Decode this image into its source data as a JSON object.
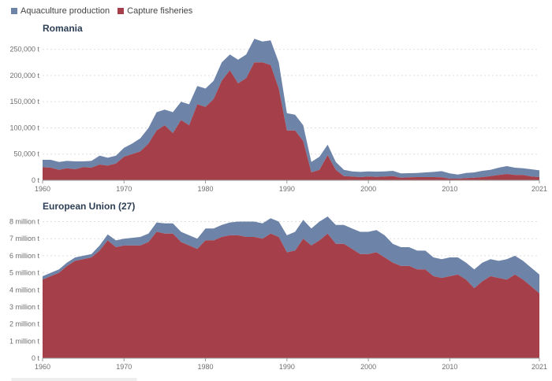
{
  "legend": {
    "items": [
      {
        "label": "Aquaculture production",
        "color": "#6d83a8"
      },
      {
        "label": "Capture fisheries",
        "color": "#a5404a"
      }
    ]
  },
  "chart_data": [
    {
      "type": "area",
      "stacked": true,
      "title": "Romania",
      "x": [
        1960,
        1961,
        1962,
        1963,
        1964,
        1965,
        1966,
        1967,
        1968,
        1969,
        1970,
        1971,
        1972,
        1973,
        1974,
        1975,
        1976,
        1977,
        1978,
        1979,
        1980,
        1981,
        1982,
        1983,
        1984,
        1985,
        1986,
        1987,
        1988,
        1989,
        1990,
        1991,
        1992,
        1993,
        1994,
        1995,
        1996,
        1997,
        1998,
        1999,
        2000,
        2001,
        2002,
        2003,
        2004,
        2005,
        2006,
        2007,
        2008,
        2009,
        2010,
        2011,
        2012,
        2013,
        2014,
        2015,
        2016,
        2017,
        2018,
        2019,
        2020,
        2021
      ],
      "series": [
        {
          "name": "Capture fisheries",
          "color": "#a5404a",
          "values": [
            25000,
            24000,
            20000,
            23000,
            21000,
            25000,
            24000,
            30000,
            28000,
            32000,
            45000,
            50000,
            55000,
            70000,
            95000,
            105000,
            90000,
            115000,
            105000,
            145000,
            140000,
            155000,
            190000,
            210000,
            185000,
            195000,
            225000,
            225000,
            220000,
            175000,
            95000,
            95000,
            75000,
            15000,
            20000,
            48000,
            20000,
            8000,
            7000,
            6000,
            7000,
            6500,
            7000,
            8000,
            5000,
            5500,
            6000,
            6000,
            6000,
            5500,
            3000,
            3000,
            4000,
            5000,
            6000,
            8000,
            10000,
            12000,
            10000,
            10000,
            7000,
            6000
          ]
        },
        {
          "name": "Aquaculture production",
          "color": "#6d83a8",
          "values": [
            14000,
            15000,
            15000,
            14000,
            15000,
            11000,
            13000,
            17000,
            15000,
            15000,
            17000,
            20000,
            25000,
            30000,
            35000,
            30000,
            40000,
            35000,
            40000,
            35000,
            35000,
            35000,
            35000,
            30000,
            45000,
            45000,
            45000,
            40000,
            47000,
            50000,
            33000,
            30000,
            30000,
            20000,
            25000,
            20000,
            15000,
            12000,
            10000,
            10000,
            10000,
            10000,
            10000,
            10000,
            8000,
            8000,
            8000,
            9000,
            10000,
            12000,
            10000,
            8000,
            10000,
            10000,
            12000,
            12000,
            14000,
            15000,
            14000,
            13000,
            14000,
            13000
          ]
        }
      ],
      "ylim": [
        0,
        275000
      ],
      "yticks": [
        0,
        50000,
        100000,
        150000,
        200000,
        250000
      ],
      "ytick_labels": [
        "0 t",
        "50,000 t",
        "100,000 t",
        "150,000 t",
        "200,000 t",
        "250,000 t"
      ],
      "xticks": [
        1960,
        1970,
        1980,
        1990,
        2000,
        2010,
        2021
      ],
      "xtick_labels": [
        "1960",
        "1970",
        "1980",
        "1990",
        "2000",
        "2010",
        "2021"
      ],
      "grid": true
    },
    {
      "type": "area",
      "stacked": true,
      "title": "European Union (27)",
      "x": [
        1960,
        1961,
        1962,
        1963,
        1964,
        1965,
        1966,
        1967,
        1968,
        1969,
        1970,
        1971,
        1972,
        1973,
        1974,
        1975,
        1976,
        1977,
        1978,
        1979,
        1980,
        1981,
        1982,
        1983,
        1984,
        1985,
        1986,
        1987,
        1988,
        1989,
        1990,
        1991,
        1992,
        1993,
        1994,
        1995,
        1996,
        1997,
        1998,
        1999,
        2000,
        2001,
        2002,
        2003,
        2004,
        2005,
        2006,
        2007,
        2008,
        2009,
        2010,
        2011,
        2012,
        2013,
        2014,
        2015,
        2016,
        2017,
        2018,
        2019,
        2020,
        2021
      ],
      "series": [
        {
          "name": "Capture fisheries",
          "color": "#a5404a",
          "values": [
            4600000,
            4800000,
            5000000,
            5400000,
            5700000,
            5800000,
            5900000,
            6300000,
            6900000,
            6500000,
            6600000,
            6600000,
            6600000,
            6800000,
            7400000,
            7300000,
            7300000,
            6800000,
            6600000,
            6400000,
            6900000,
            6900000,
            7100000,
            7200000,
            7200000,
            7100000,
            7100000,
            7000000,
            7300000,
            7100000,
            6200000,
            6300000,
            7000000,
            6600000,
            6900000,
            7300000,
            6700000,
            6700000,
            6400000,
            6100000,
            6100000,
            6200000,
            5900000,
            5600000,
            5400000,
            5400000,
            5200000,
            5200000,
            4800000,
            4700000,
            4800000,
            4900000,
            4600000,
            4100000,
            4500000,
            4800000,
            4700000,
            4600000,
            4900000,
            4600000,
            4200000,
            3800000
          ]
        },
        {
          "name": "Aquaculture production",
          "color": "#6d83a8",
          "values": [
            200000,
            200000,
            200000,
            200000,
            200000,
            200000,
            200000,
            300000,
            350000,
            400000,
            400000,
            450000,
            500000,
            500000,
            550000,
            600000,
            600000,
            600000,
            600000,
            600000,
            700000,
            700000,
            700000,
            750000,
            800000,
            900000,
            900000,
            900000,
            900000,
            900000,
            1000000,
            1100000,
            1100000,
            1000000,
            1100000,
            1000000,
            1100000,
            1100000,
            1200000,
            1300000,
            1300000,
            1300000,
            1300000,
            1100000,
            1100000,
            1100000,
            1100000,
            1100000,
            1100000,
            1100000,
            1100000,
            1000000,
            1000000,
            1100000,
            1100000,
            1000000,
            1000000,
            1200000,
            1100000,
            1100000,
            1100000,
            1100000
          ]
        }
      ],
      "ylim": [
        0,
        8300000
      ],
      "yticks": [
        0,
        1000000,
        2000000,
        3000000,
        4000000,
        5000000,
        6000000,
        7000000,
        8000000
      ],
      "ytick_labels": [
        "0 t",
        "1 million t",
        "2 million t",
        "3 million t",
        "4 million t",
        "5 million t",
        "6 million t",
        "7 million t",
        "8 million t"
      ],
      "xticks": [
        1960,
        1970,
        1980,
        1990,
        2000,
        2010,
        2021
      ],
      "xtick_labels": [
        "1960",
        "1970",
        "1980",
        "1990",
        "2000",
        "2010",
        "2021"
      ],
      "grid": true
    }
  ]
}
